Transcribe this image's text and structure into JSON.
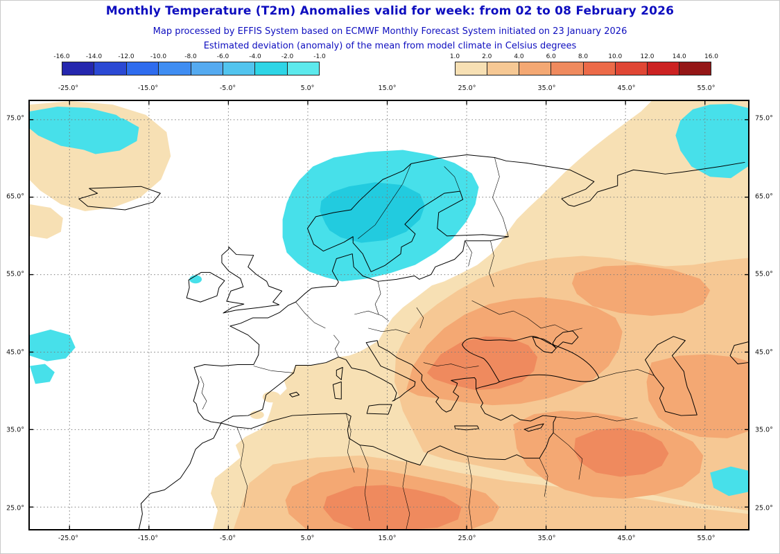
{
  "header": {
    "title": "Monthly Temperature (T2m) Anomalies valid for week: from 02 to 08 February 2026",
    "subtitle1": "Map processed by EFFIS System based on ECMWF Monthly Forecast System initiated on 23 January 2026",
    "subtitle2": "Estimated deviation (anomaly) of the mean from model climate in Celsius degrees"
  },
  "colors": {
    "title_text": "#0d0dbf",
    "subtitle_text": "#0d0dbf",
    "coast": "#000000",
    "grid": "#7a7a7a",
    "warm1": "#f7e0b4",
    "warm2": "#f6c894",
    "warm3": "#f4a873",
    "warm4": "#ef8a5e",
    "cyan1": "#47e0ea",
    "cyan2": "#22cbdf"
  },
  "legend": {
    "negative": {
      "ticks": [
        "-16.0",
        "-14.0",
        "-12.0",
        "-10.0",
        "-8.0",
        "-6.0",
        "-4.0",
        "-2.0",
        "-1.0"
      ],
      "segment_colors": [
        "#2527ae",
        "#2b49d4",
        "#2f6cee",
        "#3f8df2",
        "#55aaf0",
        "#52c4ee",
        "#2ed5e6",
        "#5ce9ec"
      ]
    },
    "positive": {
      "ticks": [
        "1.0",
        "2.0",
        "4.0",
        "6.0",
        "8.0",
        "10.0",
        "12.0",
        "14.0",
        "16.0"
      ],
      "segment_colors": [
        "#f7e0b4",
        "#f6c894",
        "#f4a873",
        "#ef8a5e",
        "#ec6a48",
        "#e04634",
        "#cc2222",
        "#941616"
      ]
    }
  },
  "axes": {
    "longitude_labels": [
      "-25.0°",
      "-15.0°",
      "-5.0°",
      "5.0°",
      "15.0°",
      "25.0°",
      "35.0°",
      "45.0°",
      "55.0°"
    ],
    "latitude_labels": [
      "75.0°",
      "65.0°",
      "55.0°",
      "45.0°",
      "35.0°",
      "25.0°"
    ]
  }
}
